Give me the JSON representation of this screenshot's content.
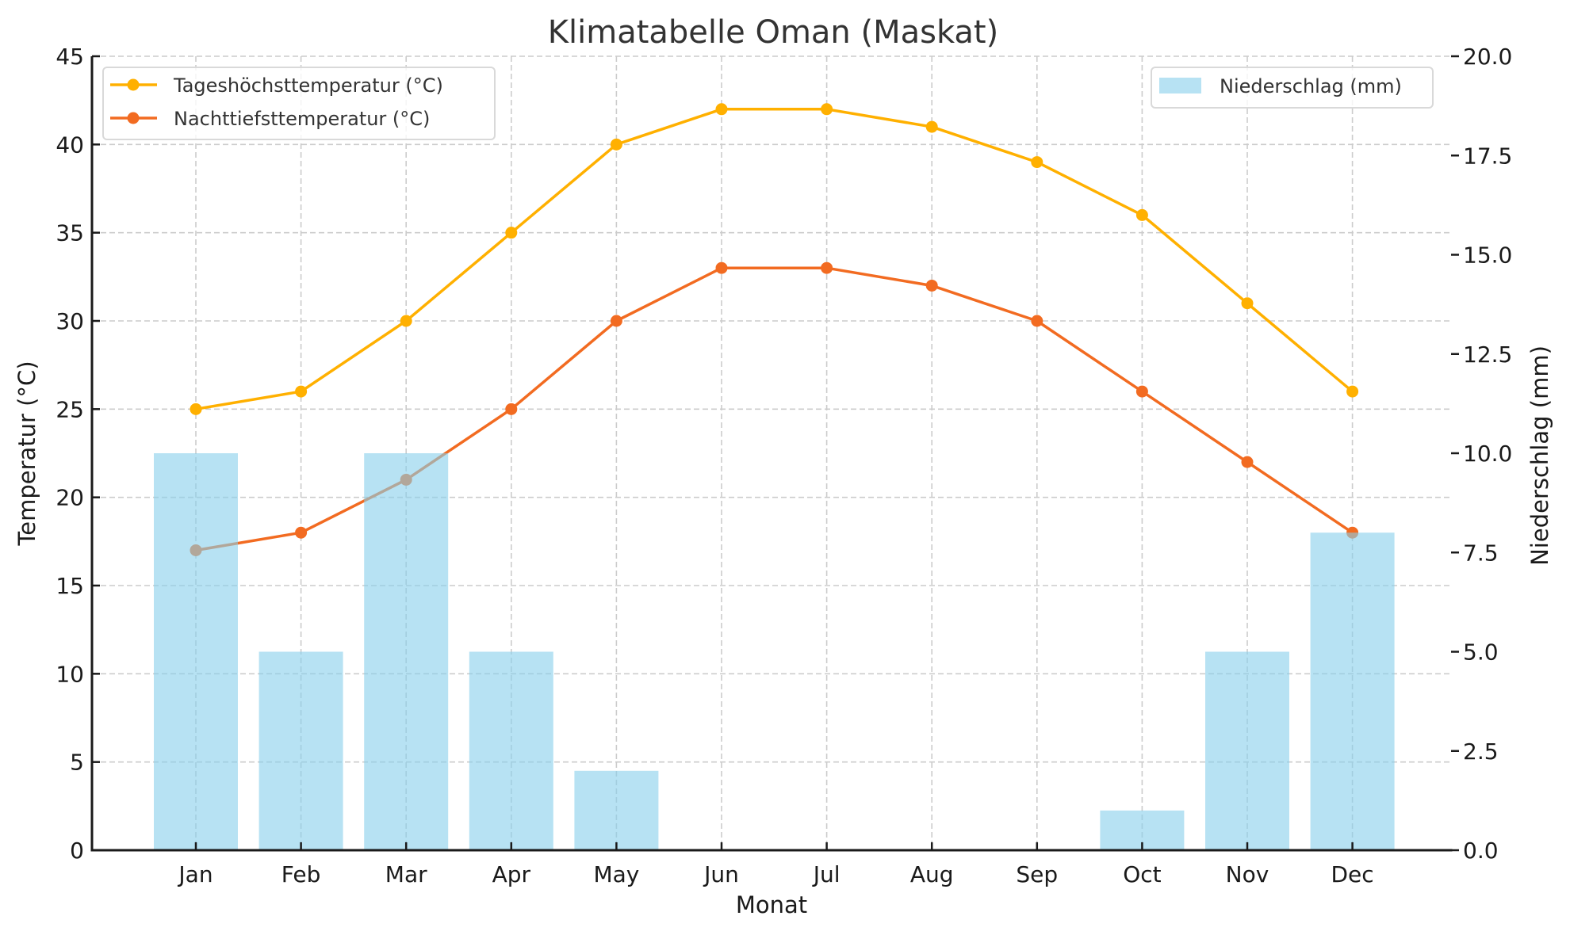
{
  "chart_data": {
    "type": "bar+line",
    "title": "Klimatabelle Oman (Maskat)",
    "xlabel": "Monat",
    "ylabel_left": "Temperatur (°C)",
    "ylabel_right": "Niederschlag (mm)",
    "categories": [
      "Jan",
      "Feb",
      "Mar",
      "Apr",
      "May",
      "Jun",
      "Jul",
      "Aug",
      "Sep",
      "Oct",
      "Nov",
      "Dec"
    ],
    "ylim_left": [
      0,
      45
    ],
    "ylim_right": [
      0,
      20
    ],
    "yticks_left": [
      "0",
      "5",
      "10",
      "15",
      "20",
      "25",
      "30",
      "35",
      "40",
      "45"
    ],
    "yticks_right": [
      "0.0",
      "2.5",
      "5.0",
      "7.5",
      "10.0",
      "12.5",
      "15.0",
      "17.5",
      "20.0"
    ],
    "grid": true,
    "series": [
      {
        "name": "Tageshöchsttemperatur (°C)",
        "type": "line",
        "axis": "left",
        "color": "#FFB000",
        "marker": "circle",
        "values": [
          25,
          26,
          30,
          35,
          40,
          42,
          42,
          41,
          39,
          36,
          31,
          26
        ]
      },
      {
        "name": "Nachttiefsttemperatur (°C)",
        "type": "line",
        "axis": "left",
        "color": "#F26B21",
        "marker": "circle",
        "values": [
          17,
          18,
          21,
          25,
          30,
          33,
          33,
          32,
          30,
          26,
          22,
          18
        ]
      },
      {
        "name": "Niederschlag (mm)",
        "type": "bar",
        "axis": "right",
        "color": "#87CEEB",
        "opacity": 0.6,
        "values": [
          10,
          5,
          10,
          5,
          2,
          0,
          0,
          0,
          0,
          1,
          5,
          8
        ]
      }
    ],
    "legends": [
      {
        "placement": "upper-left",
        "entries": [
          "Tageshöchsttemperatur (°C)",
          "Nachttiefsttemperatur (°C)"
        ]
      },
      {
        "placement": "upper-right",
        "entries": [
          "Niederschlag (mm)"
        ]
      }
    ]
  }
}
